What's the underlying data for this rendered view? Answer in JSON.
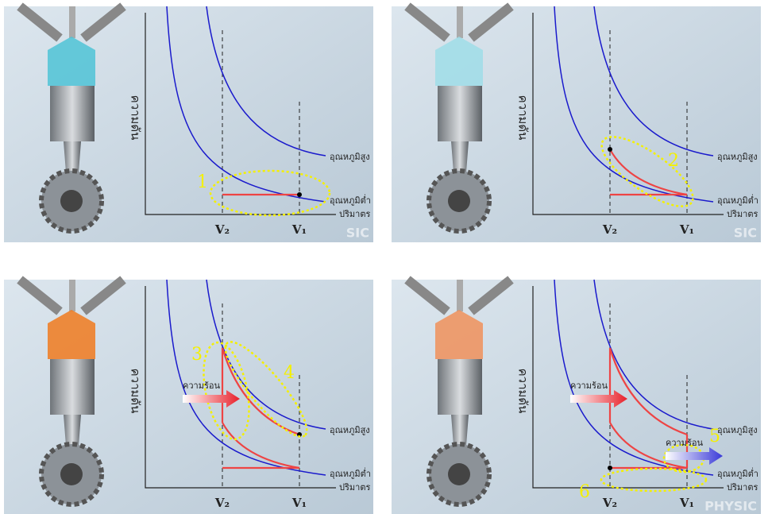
{
  "panels": [
    {
      "y_label": "ความดัน",
      "x_label": "ปริมาตร",
      "high_label": "อุณหภูมิสูง",
      "low_label": "อุณหภูมิต่ำ",
      "v_small": "V₂",
      "v_large": "V₁",
      "steps": [
        "1"
      ],
      "heat": [],
      "watermark": "SIC"
    },
    {
      "y_label": "ความดัน",
      "x_label": "ปริมาตร",
      "high_label": "อุณหภูมิสูง",
      "low_label": "อุณหภูมิต่ำ",
      "v_small": "V₂",
      "v_large": "V₁",
      "steps": [
        "2"
      ],
      "heat": [],
      "watermark": "SIC"
    },
    {
      "y_label": "ความดัน",
      "x_label": "ปริมาตร",
      "high_label": "อุณหภูมิสูง",
      "low_label": "อุณหภูมิต่ำ",
      "v_small": "V₂",
      "v_large": "V₁",
      "steps": [
        "3",
        "4"
      ],
      "heat": [
        "ความร้อน"
      ]
    },
    {
      "y_label": "ความดัน",
      "x_label": "ปริมาตร",
      "high_label": "อุณหภูมิสูง",
      "low_label": "อุณหภูมิต่ำ",
      "v_small": "V₂",
      "v_large": "V₁",
      "steps": [
        "5",
        "6"
      ],
      "heat": [
        "ความร้อน",
        "ความร้อน"
      ],
      "watermark": "PHYSIC"
    }
  ]
}
